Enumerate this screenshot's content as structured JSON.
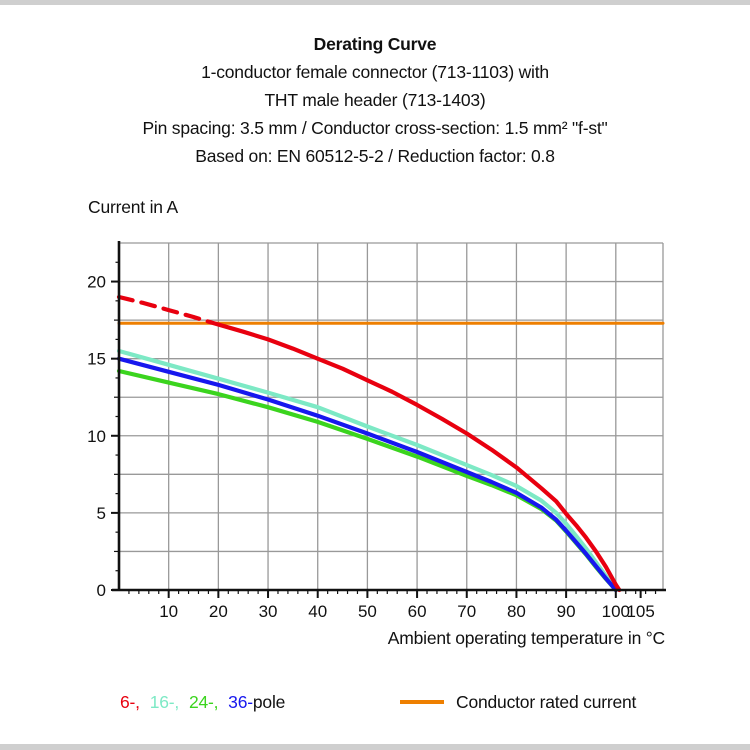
{
  "header": {
    "title": "Derating Curve",
    "subtitle_lines": [
      "1-conductor female connector (713-1103) with",
      "THT male header (713-1403)",
      "Pin spacing: 3.5 mm / Conductor cross-section: 1.5 mm² \"f-st\"",
      "Based on: EN 60512-5-2 / Reduction factor: 0.8"
    ]
  },
  "chart_data": {
    "type": "line",
    "title": "Derating Curve",
    "ylabel": "Current in A",
    "xlabel": "Ambient operating temperature in °C",
    "xlim": [
      0,
      109.5
    ],
    "ylim": [
      0,
      22.5
    ],
    "grid": "on",
    "grid_color": "#999999",
    "x_gridline_step": 10,
    "y_gridline_step": 2.5,
    "x_tick_labels": [
      10,
      20,
      30,
      40,
      50,
      60,
      70,
      80,
      90,
      100,
      105
    ],
    "y_tick_labels": [
      0,
      5,
      10,
      15,
      20
    ],
    "x_minor_tick_step": 2,
    "y_minor_tick_step": 1.25,
    "series": [
      {
        "name": "16-pole",
        "color": "#7de9c5",
        "stroke_width": 4.2,
        "points": [
          [
            0,
            15.5
          ],
          [
            10,
            14.6
          ],
          [
            20,
            13.7
          ],
          [
            30,
            12.8
          ],
          [
            40,
            11.85
          ],
          [
            50,
            10.6
          ],
          [
            60,
            9.4
          ],
          [
            70,
            8.1
          ],
          [
            75,
            7.45
          ],
          [
            80,
            6.75
          ],
          [
            85,
            5.8
          ],
          [
            88,
            5.0
          ],
          [
            90,
            4.3
          ],
          [
            92,
            3.5
          ],
          [
            94,
            2.7
          ],
          [
            96,
            1.8
          ],
          [
            98,
            0.9
          ],
          [
            100,
            0
          ]
        ]
      },
      {
        "name": "24-pole",
        "color": "#3bd41e",
        "stroke_width": 4.2,
        "points": [
          [
            0,
            14.2
          ],
          [
            10,
            13.45
          ],
          [
            20,
            12.7
          ],
          [
            30,
            11.85
          ],
          [
            40,
            10.9
          ],
          [
            50,
            9.8
          ],
          [
            60,
            8.65
          ],
          [
            70,
            7.4
          ],
          [
            75,
            6.8
          ],
          [
            80,
            6.15
          ],
          [
            85,
            5.25
          ],
          [
            88,
            4.5
          ],
          [
            90,
            3.8
          ],
          [
            92,
            3.05
          ],
          [
            94,
            2.3
          ],
          [
            96,
            1.5
          ],
          [
            98,
            0.72
          ],
          [
            100,
            0
          ]
        ]
      },
      {
        "name": "36-pole",
        "color": "#1717ee",
        "stroke_width": 4.2,
        "points": [
          [
            0,
            15.0
          ],
          [
            10,
            14.15
          ],
          [
            20,
            13.3
          ],
          [
            30,
            12.35
          ],
          [
            40,
            11.3
          ],
          [
            50,
            10.15
          ],
          [
            60,
            8.95
          ],
          [
            70,
            7.65
          ],
          [
            75,
            7.0
          ],
          [
            80,
            6.3
          ],
          [
            85,
            5.35
          ],
          [
            88,
            4.55
          ],
          [
            90,
            3.85
          ],
          [
            92,
            3.1
          ],
          [
            94,
            2.35
          ],
          [
            96,
            1.55
          ],
          [
            98,
            0.75
          ],
          [
            100,
            0
          ]
        ]
      },
      {
        "name": "6-pole",
        "color": "#e8000f",
        "stroke_width": 4.2,
        "dashed_points": [
          [
            0,
            19.0
          ],
          [
            5,
            18.6
          ],
          [
            10,
            18.15
          ],
          [
            15,
            17.7
          ],
          [
            18.5,
            17.35
          ]
        ],
        "points": [
          [
            18.5,
            17.35
          ],
          [
            25,
            16.75
          ],
          [
            30,
            16.25
          ],
          [
            35,
            15.65
          ],
          [
            40,
            15.0
          ],
          [
            45,
            14.35
          ],
          [
            50,
            13.6
          ],
          [
            55,
            12.85
          ],
          [
            60,
            12.0
          ],
          [
            65,
            11.1
          ],
          [
            70,
            10.15
          ],
          [
            75,
            9.1
          ],
          [
            80,
            7.95
          ],
          [
            85,
            6.6
          ],
          [
            88,
            5.75
          ],
          [
            90,
            4.95
          ],
          [
            92,
            4.2
          ],
          [
            94,
            3.4
          ],
          [
            96,
            2.5
          ],
          [
            98,
            1.5
          ],
          [
            100,
            0.35
          ],
          [
            100.7,
            0
          ]
        ]
      },
      {
        "name": "Conductor rated current",
        "color": "#ee7f00",
        "stroke_width": 3,
        "points": [
          [
            0,
            17.3
          ],
          [
            109.5,
            17.3
          ]
        ]
      }
    ]
  },
  "legend": {
    "pole_items": [
      {
        "label": "6-,",
        "color": "#e8000f"
      },
      {
        "label": "16-,",
        "color": "#7de9c5"
      },
      {
        "label": "24-,",
        "color": "#3bd41e"
      },
      {
        "label": "36-",
        "color": "#1717ee"
      }
    ],
    "pole_suffix": "pole",
    "rated": {
      "label": "Conductor rated current",
      "color": "#ee7f00"
    }
  }
}
